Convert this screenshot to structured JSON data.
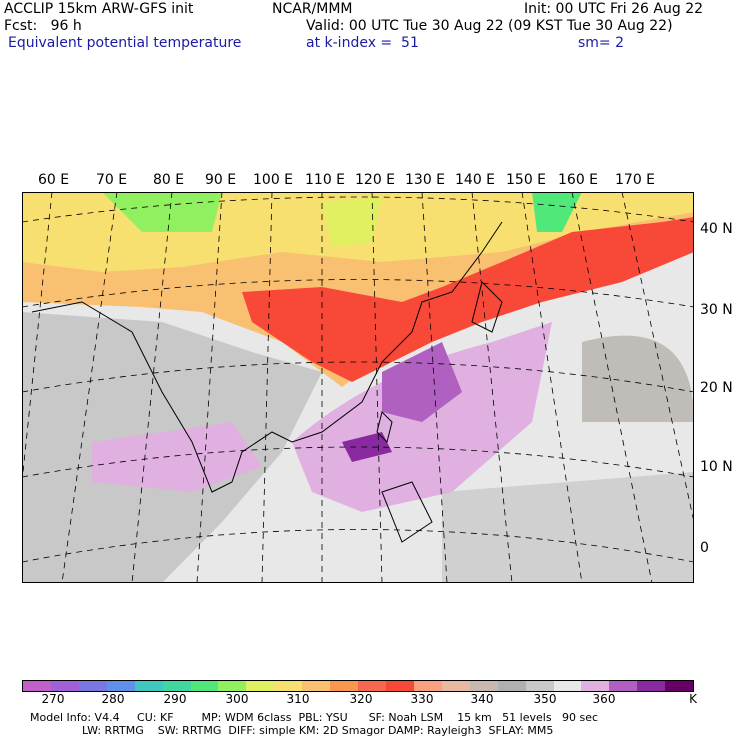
{
  "header": {
    "line1_left": "ACCLIP 15km ARW-GFS init",
    "line1_mid": "NCAR/MMM",
    "line1_right": "Init: 00 UTC Fri 26 Aug 22",
    "line2_left": "Fcst:   96 h",
    "line2_right": "Valid: 00 UTC Tue 30 Aug 22 (09 KST Tue 30 Aug 22)",
    "line3_left": "Equivalent potential temperature",
    "line3_mid": "at k-index =  51",
    "line3_right": "sm= 2"
  },
  "map": {
    "lon_labels": [
      "60 E",
      "70 E",
      "80 E",
      "90 E",
      "100 E",
      "110 E",
      "120 E",
      "130 E",
      "140 E",
      "150 E",
      "160 E",
      "170 E"
    ],
    "lat_labels": [
      "40 N",
      "30 N",
      "20 N",
      "10 N",
      "0"
    ]
  },
  "colorbar": {
    "colors": [
      "#c060c8",
      "#a060d8",
      "#7a78e0",
      "#6090e8",
      "#40c8c0",
      "#40d8a0",
      "#50e878",
      "#90f060",
      "#e0f060",
      "#f8e070",
      "#f8c070",
      "#f89850",
      "#f86850",
      "#f84838",
      "#f8a080",
      "#e8b8a0",
      "#c8b8b0",
      "#b0b0b0",
      "#c8c8c8",
      "#e8e8e8",
      "#e0b0e0",
      "#b060c0",
      "#8a2aa0",
      "#660066"
    ],
    "labels": [
      "270",
      "280",
      "290",
      "300",
      "310",
      "320",
      "330",
      "340",
      "350",
      "360"
    ],
    "unit": "K"
  },
  "footer": {
    "line1": "Model Info: V4.4     CU: KF        MP: WDM 6class  PBL: YSU      SF: Noah LSM    15 km   51 levels   90 sec",
    "line2": "LW: RRTMG    SW: RRTMG  DIFF: simple KM: 2D Smagor DAMP: Rayleigh3  SFLAY: MM5"
  }
}
